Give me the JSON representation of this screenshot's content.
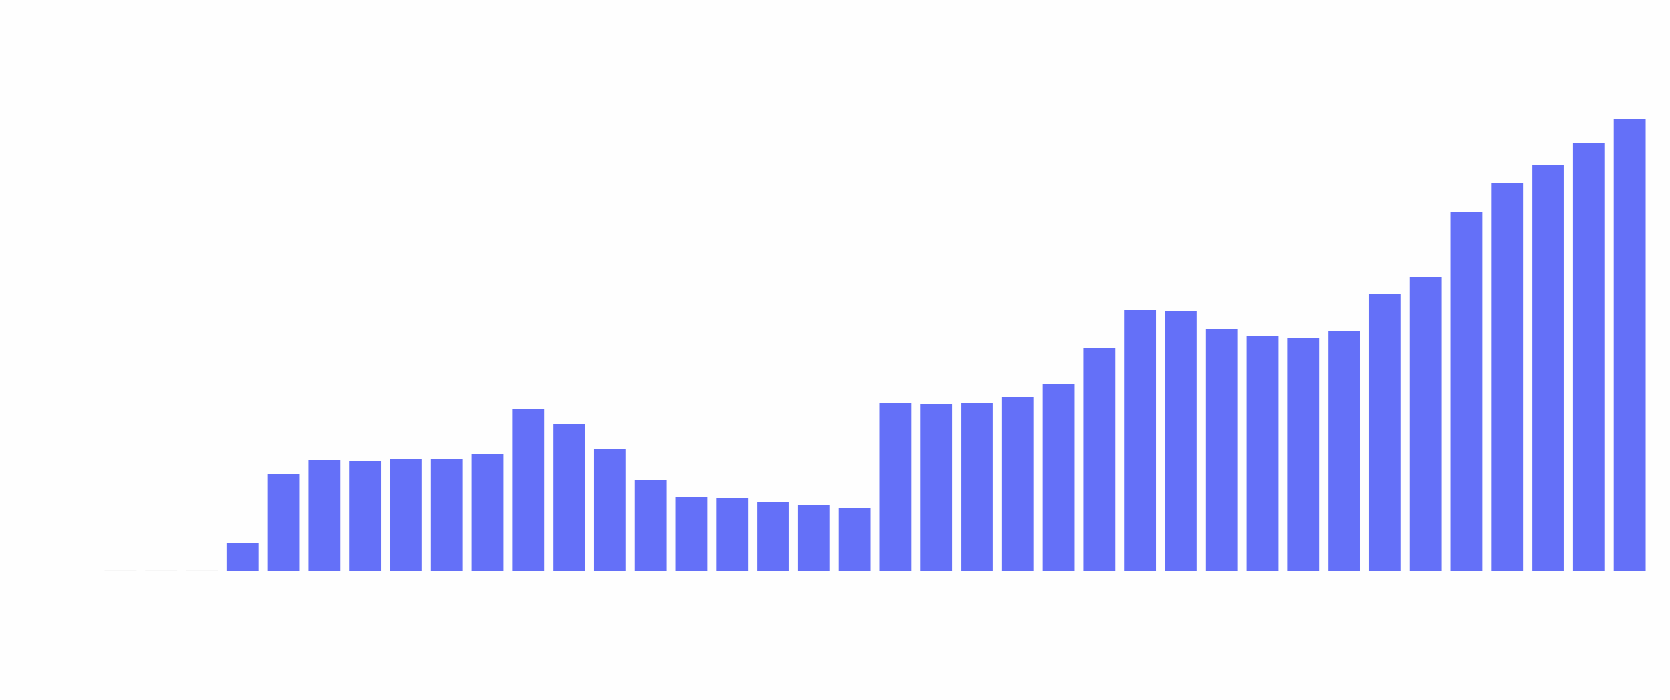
{
  "colors": {
    "background": "#fefefe",
    "bar": "#6470f8"
  },
  "chart_data": {
    "type": "bar",
    "values": [
      0,
      0,
      0,
      28,
      97,
      111,
      110,
      112,
      112,
      117,
      162,
      147,
      122,
      91,
      74,
      73,
      69,
      66,
      63,
      168,
      167,
      168,
      174,
      187,
      223,
      261,
      260,
      242,
      235,
      233,
      240,
      277,
      294,
      359,
      388,
      406,
      428,
      452
    ],
    "ylim": [
      0,
      500
    ],
    "grid": false,
    "legend": "none"
  }
}
